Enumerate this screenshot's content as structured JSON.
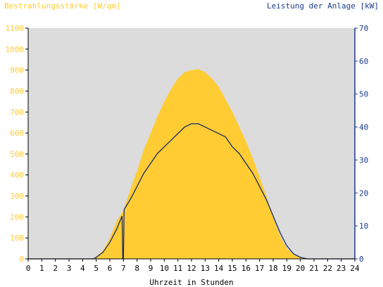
{
  "chart_data": {
    "type": "area",
    "title_left": "Bestrahlungsstärke [W/qm]",
    "title_right": "Leistung der Anlage [kW]",
    "xlabel": "Uhrzeit in Stunden",
    "x_ticks": [
      "0",
      "1",
      "2",
      "3",
      "4",
      "5",
      "6",
      "7",
      "8",
      "9",
      "10",
      "11",
      "12",
      "13",
      "14",
      "15",
      "16",
      "17",
      "18",
      "19",
      "20",
      "21",
      "22",
      "23",
      "24"
    ],
    "xlim": [
      0,
      24
    ],
    "y_left": {
      "ticks": [
        "0",
        "100",
        "200",
        "300",
        "400",
        "500",
        "600",
        "700",
        "800",
        "900",
        "1000",
        "1100"
      ],
      "ylim": [
        0,
        1100
      ]
    },
    "y_right": {
      "ticks": [
        "0",
        "10",
        "20",
        "30",
        "40",
        "50",
        "60",
        "70"
      ],
      "ylim": [
        0,
        70
      ]
    },
    "colors": {
      "background": "#dcdcdc",
      "irradiance_fill": "#ffcc33",
      "power_line": "#1a2a66",
      "left_axis_text": "#ffcc33",
      "right_axis_text": "#1a3a8a",
      "x_axis_text": "#000000"
    },
    "series": [
      {
        "axis": "left",
        "style": "area",
        "x": [
          0,
          4.8,
          5,
          5.5,
          6,
          6.5,
          7,
          7.5,
          8,
          8.5,
          9,
          9.5,
          10,
          10.5,
          11,
          11.5,
          12,
          12.5,
          13,
          13.5,
          14,
          14.5,
          15,
          15.5,
          16,
          16.5,
          17,
          17.5,
          18,
          18.5,
          19,
          19.5,
          20,
          20.5,
          21,
          24
        ],
        "values": [
          0,
          0,
          10,
          40,
          100,
          180,
          230,
          330,
          420,
          520,
          600,
          680,
          750,
          810,
          860,
          890,
          900,
          905,
          890,
          860,
          820,
          760,
          700,
          630,
          560,
          480,
          390,
          300,
          200,
          110,
          50,
          20,
          5,
          0,
          0,
          0
        ]
      },
      {
        "axis": "right",
        "style": "line",
        "x": [
          0,
          4.8,
          5,
          5.5,
          6,
          6.5,
          6.9,
          6.95,
          7.0,
          7.05,
          7.5,
          8,
          8.5,
          9,
          9.5,
          10,
          10.5,
          11,
          11.5,
          12,
          12.5,
          13,
          13.5,
          14,
          14.5,
          15,
          15.5,
          16,
          16.5,
          17,
          17.5,
          18,
          18.5,
          19,
          19.5,
          20,
          20.5,
          21,
          24
        ],
        "values": [
          0,
          0,
          0.5,
          2,
          5,
          9,
          13,
          0,
          0,
          15,
          18,
          22,
          26,
          29,
          32,
          34,
          36,
          38,
          40,
          41,
          41,
          40,
          39,
          38,
          37,
          34,
          32,
          29,
          26,
          22,
          18,
          13,
          8,
          4,
          1.5,
          0.5,
          0,
          0,
          0
        ]
      }
    ]
  }
}
